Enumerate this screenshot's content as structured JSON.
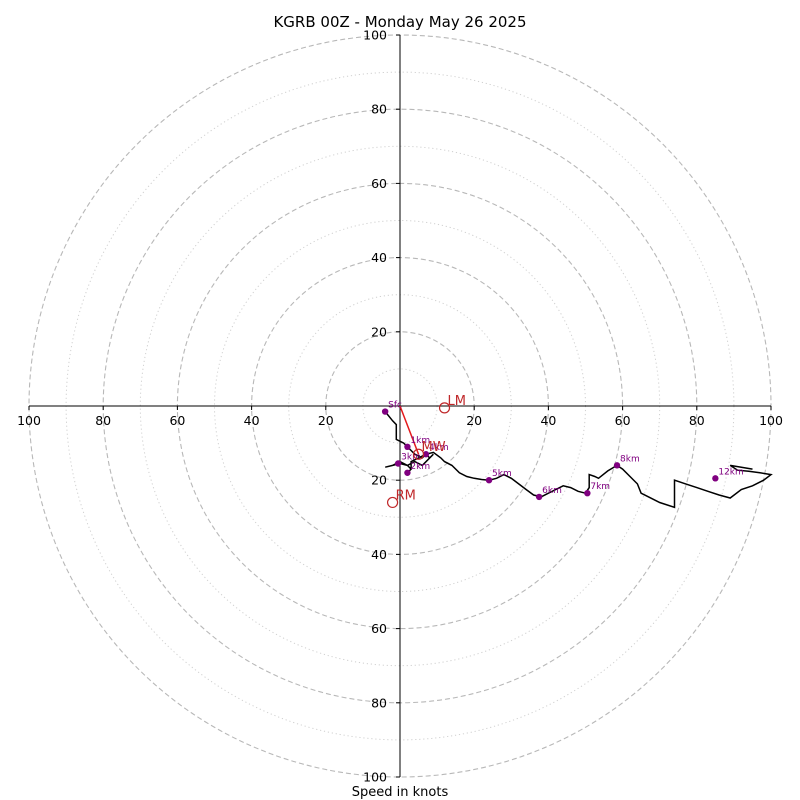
{
  "chart_data": {
    "type": "line",
    "title": "KGRB 00Z - Monday May 26 2025",
    "xlabel": "Speed in knots",
    "ylabel": "",
    "xlim": [
      -100,
      100
    ],
    "ylim": [
      -100,
      100
    ],
    "major_rings": [
      20,
      40,
      60,
      80,
      100
    ],
    "minor_rings": [
      10,
      30,
      50,
      70,
      90
    ],
    "ticks": {
      "left": [
        "100",
        "80",
        "60",
        "40",
        "20"
      ],
      "right": [
        "20",
        "40",
        "60",
        "80",
        "100"
      ],
      "up": [
        "20",
        "40",
        "60",
        "80",
        "100"
      ],
      "down": [
        "20",
        "40",
        "60",
        "80",
        "100"
      ]
    },
    "hodograph": [
      [
        -4,
        -1.5
      ],
      [
        -2,
        -4
      ],
      [
        -1,
        -5
      ],
      [
        -1,
        -9
      ],
      [
        1,
        -10
      ],
      [
        2,
        -11
      ],
      [
        3,
        -12
      ],
      [
        4,
        -13
      ],
      [
        6,
        -14
      ],
      [
        7,
        -13
      ],
      [
        8,
        -14
      ],
      [
        9,
        -13
      ],
      [
        6,
        -16
      ],
      [
        4,
        -15
      ],
      [
        2,
        -16
      ],
      [
        0,
        -15
      ],
      [
        -2,
        -16
      ],
      [
        -4,
        -16.5
      ],
      [
        -2,
        -16
      ],
      [
        0,
        -15.5
      ],
      [
        2,
        -16
      ],
      [
        3,
        -17
      ],
      [
        2,
        -18
      ],
      [
        3,
        -17
      ],
      [
        3,
        -15
      ],
      [
        5,
        -14
      ],
      [
        7,
        -13
      ],
      [
        9,
        -12.5
      ],
      [
        11,
        -14
      ],
      [
        12,
        -15
      ],
      [
        14,
        -16
      ],
      [
        16,
        -18
      ],
      [
        18,
        -19
      ],
      [
        20,
        -19.5
      ],
      [
        22,
        -19.8
      ],
      [
        24,
        -20
      ],
      [
        26,
        -19.5
      ],
      [
        28,
        -18.5
      ],
      [
        30,
        -19.5
      ],
      [
        32,
        -21
      ],
      [
        34,
        -22.5
      ],
      [
        36,
        -24
      ],
      [
        38,
        -24.5
      ],
      [
        40,
        -23.5
      ],
      [
        42,
        -22.5
      ],
      [
        44,
        -21.5
      ],
      [
        46,
        -22
      ],
      [
        48,
        -23
      ],
      [
        50,
        -23.5
      ],
      [
        51,
        -22
      ],
      [
        51,
        -18.5
      ],
      [
        52.5,
        -19
      ],
      [
        53.5,
        -19.5
      ],
      [
        56,
        -17.5
      ],
      [
        58.5,
        -16
      ],
      [
        60,
        -17
      ],
      [
        62,
        -19
      ],
      [
        64,
        -21
      ],
      [
        65,
        -23.5
      ],
      [
        67,
        -24.5
      ],
      [
        70,
        -26
      ],
      [
        74,
        -27.3
      ],
      [
        74,
        -20
      ],
      [
        77,
        -21
      ],
      [
        80,
        -22
      ],
      [
        83,
        -23
      ],
      [
        86,
        -24
      ],
      [
        89,
        -24.8
      ],
      [
        92,
        -22.5
      ],
      [
        95,
        -21.5
      ],
      [
        98,
        -20
      ],
      [
        100,
        -18.5
      ],
      [
        97,
        -18
      ],
      [
        94,
        -17.6
      ],
      [
        91,
        -17.3
      ],
      [
        89,
        -16
      ],
      [
        92,
        -16.5
      ],
      [
        95,
        -17
      ]
    ],
    "height_markers": [
      {
        "label": "Sfc",
        "x": -4,
        "y": -1.5
      },
      {
        "label": "1km",
        "x": 2,
        "y": -11
      },
      {
        "label": "2km",
        "x": 2,
        "y": -18
      },
      {
        "label": "3km",
        "x": -0.5,
        "y": -15.5
      },
      {
        "label": "4km",
        "x": 7,
        "y": -13
      },
      {
        "label": "5km",
        "x": 24,
        "y": -20
      },
      {
        "label": "6km",
        "x": 37.5,
        "y": -24.5
      },
      {
        "label": "7km",
        "x": 50.5,
        "y": -23.5
      },
      {
        "label": "8km",
        "x": 58.5,
        "y": -16
      },
      {
        "label": "12km",
        "x": 85,
        "y": -19.5
      }
    ],
    "motion_markers": [
      {
        "label": "LM",
        "x": 12,
        "y": -0.5
      },
      {
        "label": "RM",
        "x": -2,
        "y": -26
      },
      {
        "label": "MW",
        "x": 5,
        "y": -13
      }
    ],
    "shear_vector": [
      [
        0,
        0
      ],
      [
        5,
        -13
      ]
    ],
    "colors": {
      "hodograph": "#000000",
      "marker": "#800080",
      "motion": "#c0282a",
      "shear": "#e41a1c",
      "major_ring": "#b8b8b8",
      "minor_ring": "#d0d0d0",
      "axis": "#000000"
    }
  }
}
